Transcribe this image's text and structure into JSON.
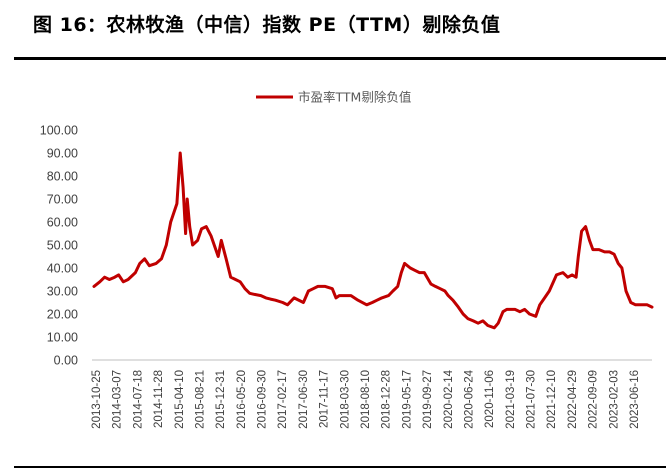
{
  "figure": {
    "title": "图 16：农林牧渔（中信）指数 PE（TTM）剔除负值"
  },
  "chart_data": {
    "type": "line",
    "title": "",
    "xlabel": "",
    "ylabel": "",
    "ylim": [
      0,
      100
    ],
    "yticks": [
      "0.00",
      "10.00",
      "20.00",
      "30.00",
      "40.00",
      "50.00",
      "60.00",
      "70.00",
      "80.00",
      "90.00",
      "100.00"
    ],
    "xticks": [
      "2013-10-25",
      "2014-03-07",
      "2014-07-18",
      "2014-11-28",
      "2015-04-10",
      "2015-08-21",
      "2015-12-31",
      "2016-05-20",
      "2016-09-30",
      "2017-02-17",
      "2017-06-30",
      "2017-11-17",
      "2018-03-30",
      "2018-08-10",
      "2018-12-28",
      "2019-05-17",
      "2019-09-27",
      "2020-02-14",
      "2020-06-24",
      "2020-11-06",
      "2021-03-19",
      "2021-07-30",
      "2021-12-10",
      "2022-04-29",
      "2022-09-09",
      "2023-02-03",
      "2023-06-16"
    ],
    "legend": {
      "position": "top-center"
    },
    "grid": false,
    "series": [
      {
        "name": "市盈率TTM剔除负值",
        "color": "#C00000",
        "x": [
          "2013-10-25",
          "2013-12-01",
          "2014-01-01",
          "2014-02-01",
          "2014-03-07",
          "2014-04-01",
          "2014-05-01",
          "2014-06-01",
          "2014-07-18",
          "2014-08-15",
          "2014-09-15",
          "2014-10-15",
          "2014-11-28",
          "2015-01-01",
          "2015-02-01",
          "2015-03-01",
          "2015-04-10",
          "2015-05-01",
          "2015-05-20",
          "2015-06-05",
          "2015-06-15",
          "2015-07-01",
          "2015-07-20",
          "2015-08-21",
          "2015-09-15",
          "2015-10-15",
          "2015-11-15",
          "2015-12-31",
          "2016-01-20",
          "2016-02-20",
          "2016-03-20",
          "2016-04-20",
          "2016-05-20",
          "2016-06-20",
          "2016-07-20",
          "2016-08-20",
          "2016-09-30",
          "2016-11-01",
          "2016-12-01",
          "2017-01-01",
          "2017-02-17",
          "2017-03-20",
          "2017-05-01",
          "2017-06-30",
          "2017-08-01",
          "2017-09-01",
          "2017-10-01",
          "2017-11-17",
          "2018-01-01",
          "2018-01-25",
          "2018-02-15",
          "2018-03-30",
          "2018-05-01",
          "2018-06-15",
          "2018-08-10",
          "2018-09-15",
          "2018-10-15",
          "2018-11-15",
          "2018-12-28",
          "2019-01-25",
          "2019-02-25",
          "2019-03-20",
          "2019-04-10",
          "2019-05-17",
          "2019-06-15",
          "2019-07-15",
          "2019-08-15",
          "2019-09-27",
          "2019-10-25",
          "2019-11-25",
          "2019-12-25",
          "2020-01-15",
          "2020-02-14",
          "2020-03-20",
          "2020-04-20",
          "2020-05-20",
          "2020-06-24",
          "2020-07-25",
          "2020-08-25",
          "2020-09-25",
          "2020-11-06",
          "2020-12-01",
          "2021-01-01",
          "2021-01-25",
          "2021-02-20",
          "2021-03-19",
          "2021-04-20",
          "2021-05-20",
          "2021-06-20",
          "2021-07-30",
          "2021-08-25",
          "2021-09-25",
          "2021-10-25",
          "2021-12-10",
          "2022-01-20",
          "2022-02-20",
          "2022-03-20",
          "2022-04-15",
          "2022-04-29",
          "2022-05-20",
          "2022-06-15",
          "2022-07-10",
          "2022-08-01",
          "2022-09-09",
          "2022-10-15",
          "2022-11-15",
          "2022-12-15",
          "2023-01-10",
          "2023-02-03",
          "2023-03-01",
          "2023-04-01",
          "2023-05-01",
          "2023-06-16",
          "2023-07-15",
          "2023-08-15"
        ],
        "values": [
          32,
          34,
          36,
          35,
          36,
          37,
          34,
          35,
          38,
          42,
          44,
          41,
          42,
          44,
          50,
          60,
          68,
          90,
          75,
          55,
          70,
          58,
          50,
          52,
          57,
          58,
          54,
          45,
          52,
          44,
          36,
          35,
          34,
          31,
          29,
          28.5,
          28,
          27,
          26.5,
          26,
          25,
          24,
          27,
          25,
          30,
          31,
          32,
          32,
          31,
          27,
          28,
          28,
          28,
          26,
          24,
          25,
          26,
          27,
          28,
          30,
          32,
          38,
          42,
          40,
          39,
          38,
          38,
          33,
          32,
          31,
          30,
          28,
          26,
          23,
          20,
          18,
          17,
          16,
          17,
          15,
          14,
          16,
          21,
          22,
          22,
          22,
          21,
          22,
          20,
          19,
          24,
          27,
          30,
          37,
          38,
          36,
          37,
          36,
          45,
          56,
          58,
          52,
          48,
          48,
          47,
          47,
          46,
          42,
          40,
          30,
          25,
          24,
          24,
          24,
          23
        ]
      }
    ]
  }
}
